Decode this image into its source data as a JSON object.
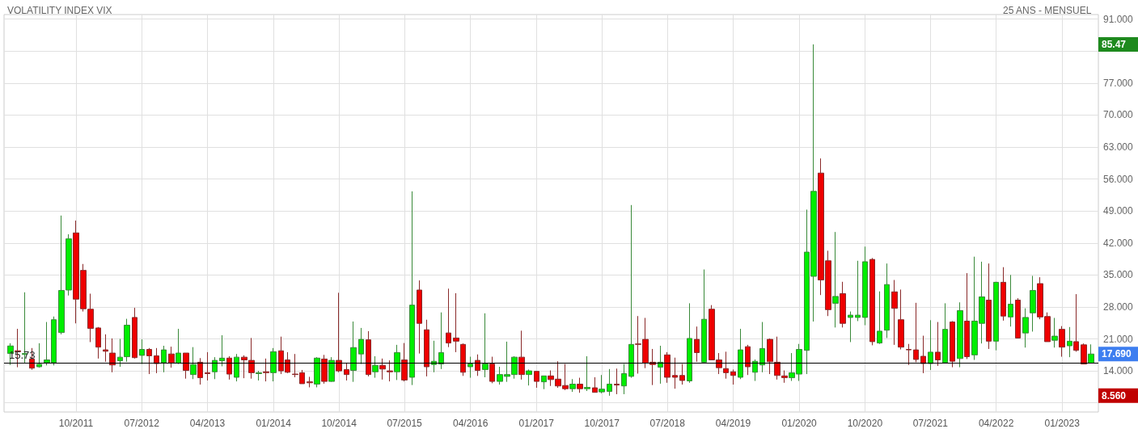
{
  "chart_data": {
    "type": "candlestick",
    "title": "VOLATILITY INDEX VIX",
    "subtitle": "25 ANS - MENSUEL",
    "x": [
      "2011-01",
      "2011-02",
      "2011-03",
      "2011-04",
      "2011-05",
      "2011-06",
      "2011-07",
      "2011-08",
      "2011-09",
      "2011-10",
      "2011-11",
      "2011-12",
      "2012-01",
      "2012-02",
      "2012-03",
      "2012-04",
      "2012-05",
      "2012-06",
      "2012-07",
      "2012-08",
      "2012-09",
      "2012-10",
      "2012-11",
      "2012-12",
      "2013-01",
      "2013-02",
      "2013-03",
      "2013-04",
      "2013-05",
      "2013-06",
      "2013-07",
      "2013-08",
      "2013-09",
      "2013-10",
      "2013-11",
      "2013-12",
      "2014-01",
      "2014-02",
      "2014-03",
      "2014-04",
      "2014-05",
      "2014-06",
      "2014-07",
      "2014-08",
      "2014-09",
      "2014-10",
      "2014-11",
      "2014-12",
      "2015-01",
      "2015-02",
      "2015-03",
      "2015-04",
      "2015-05",
      "2015-06",
      "2015-07",
      "2015-08",
      "2015-09",
      "2015-10",
      "2015-11",
      "2015-12",
      "2016-01",
      "2016-02",
      "2016-03",
      "2016-04",
      "2016-05",
      "2016-06",
      "2016-07",
      "2016-08",
      "2016-09",
      "2016-10",
      "2016-11",
      "2016-12",
      "2017-01",
      "2017-02",
      "2017-03",
      "2017-04",
      "2017-05",
      "2017-06",
      "2017-07",
      "2017-08",
      "2017-09",
      "2017-10",
      "2017-11",
      "2017-12",
      "2018-01",
      "2018-02",
      "2018-03",
      "2018-04",
      "2018-05",
      "2018-06",
      "2018-07",
      "2018-08",
      "2018-09",
      "2018-10",
      "2018-11",
      "2018-12",
      "2019-01",
      "2019-02",
      "2019-03",
      "2019-04",
      "2019-05",
      "2019-06",
      "2019-07",
      "2019-08",
      "2019-09",
      "2019-10",
      "2019-11",
      "2019-12",
      "2020-01",
      "2020-02",
      "2020-03",
      "2020-04",
      "2020-05",
      "2020-06",
      "2020-07",
      "2020-08",
      "2020-09",
      "2020-10",
      "2020-11",
      "2020-12",
      "2021-01",
      "2021-02",
      "2021-03",
      "2021-04",
      "2021-05",
      "2021-06",
      "2021-07",
      "2021-08",
      "2021-09",
      "2021-10",
      "2021-11",
      "2021-12",
      "2022-01",
      "2022-02",
      "2022-03",
      "2022-04",
      "2022-05",
      "2022-06",
      "2022-07",
      "2022-08",
      "2022-09",
      "2022-10",
      "2022-11",
      "2022-12",
      "2023-01",
      "2023-02",
      "2023-03",
      "2023-04",
      "2023-05"
    ],
    "ohlc": [
      [
        17.8,
        20.05,
        15.3,
        19.46
      ],
      [
        18.4,
        23.2,
        14.8,
        18.2
      ],
      [
        17.6,
        31.2,
        15.8,
        17.8
      ],
      [
        16.6,
        19.0,
        14.25,
        14.6
      ],
      [
        14.9,
        20.05,
        14.7,
        15.45
      ],
      [
        15.8,
        24.7,
        15.2,
        16.4
      ],
      [
        15.8,
        25.9,
        15.2,
        25.2
      ],
      [
        22.4,
        48.0,
        22.0,
        31.6
      ],
      [
        31.7,
        43.9,
        30.5,
        42.9
      ],
      [
        44.2,
        46.9,
        24.4,
        29.7
      ],
      [
        36.0,
        37.4,
        27.0,
        27.6
      ],
      [
        27.5,
        30.9,
        20.3,
        23.3
      ],
      [
        23.4,
        23.6,
        16.7,
        19.2
      ],
      [
        18.6,
        22.0,
        16.0,
        18.3
      ],
      [
        17.9,
        21.1,
        13.7,
        15.3
      ],
      [
        16.2,
        21.0,
        14.9,
        17.0
      ],
      [
        17.1,
        25.4,
        16.0,
        24.0
      ],
      [
        25.7,
        27.8,
        16.7,
        16.9
      ],
      [
        17.4,
        20.9,
        15.5,
        18.7
      ],
      [
        18.7,
        19.0,
        13.3,
        17.3
      ],
      [
        17.3,
        19.0,
        13.5,
        15.6
      ],
      [
        15.8,
        19.5,
        13.7,
        18.6
      ],
      [
        17.7,
        19.3,
        14.7,
        15.7
      ],
      [
        15.7,
        23.2,
        15.5,
        17.9
      ],
      [
        17.9,
        17.9,
        12.3,
        14.1
      ],
      [
        13.2,
        19.2,
        12.2,
        15.4
      ],
      [
        15.9,
        16.8,
        11.0,
        12.5
      ],
      [
        13.6,
        18.1,
        11.9,
        13.4
      ],
      [
        13.8,
        17.0,
        12.2,
        16.3
      ],
      [
        16.2,
        21.8,
        15.0,
        16.8
      ],
      [
        16.8,
        17.2,
        12.1,
        13.3
      ],
      [
        12.6,
        17.7,
        11.7,
        17.0
      ],
      [
        17.0,
        17.4,
        12.4,
        16.4
      ],
      [
        16.3,
        21.2,
        12.3,
        13.6
      ],
      [
        13.4,
        14.0,
        11.9,
        13.6
      ],
      [
        13.8,
        16.7,
        11.7,
        13.6
      ],
      [
        13.6,
        19.0,
        11.7,
        18.2
      ],
      [
        18.4,
        21.5,
        13.3,
        14.0
      ],
      [
        16.4,
        18.1,
        13.5,
        13.7
      ],
      [
        13.3,
        17.7,
        12.6,
        13.2
      ],
      [
        13.6,
        14.2,
        11.2,
        11.2
      ],
      [
        11.6,
        12.7,
        10.4,
        11.4
      ],
      [
        11.1,
        17.0,
        10.4,
        16.8
      ],
      [
        16.6,
        17.5,
        11.2,
        11.7
      ],
      [
        11.7,
        17.0,
        11.6,
        16.3
      ],
      [
        16.3,
        31.1,
        13.7,
        14.0
      ],
      [
        14.3,
        15.8,
        11.9,
        13.2
      ],
      [
        14.1,
        24.8,
        11.6,
        19.1
      ],
      [
        17.7,
        23.4,
        15.5,
        20.9
      ],
      [
        20.8,
        22.7,
        12.8,
        13.2
      ],
      [
        13.8,
        17.2,
        12.5,
        15.2
      ],
      [
        15.2,
        16.7,
        12.1,
        14.4
      ],
      [
        14.0,
        16.3,
        11.7,
        13.8
      ],
      [
        13.8,
        19.7,
        12.0,
        18.0
      ],
      [
        16.4,
        20.1,
        11.7,
        12.0
      ],
      [
        12.6,
        53.3,
        10.9,
        28.4
      ],
      [
        31.7,
        33.8,
        17.8,
        24.4
      ],
      [
        23.0,
        25.2,
        12.8,
        14.9
      ],
      [
        15.4,
        20.6,
        13.7,
        16.1
      ],
      [
        15.5,
        26.8,
        14.4,
        18.0
      ],
      [
        22.3,
        32.0,
        19.2,
        20.1
      ],
      [
        21.2,
        31.0,
        18.1,
        20.5
      ],
      [
        19.8,
        20.0,
        12.9,
        13.7
      ],
      [
        14.9,
        17.1,
        12.5,
        15.5
      ],
      [
        16.3,
        17.6,
        12.9,
        14.1
      ],
      [
        14.3,
        26.6,
        12.6,
        15.5
      ],
      [
        15.5,
        17.1,
        11.3,
        11.7
      ],
      [
        11.7,
        14.9,
        11.0,
        13.2
      ],
      [
        12.8,
        20.4,
        11.6,
        13.2
      ],
      [
        13.2,
        17.2,
        12.3,
        17.0
      ],
      [
        17.0,
        22.8,
        12.1,
        13.2
      ],
      [
        13.2,
        14.3,
        10.8,
        14.0
      ],
      [
        13.9,
        13.9,
        10.3,
        11.7
      ],
      [
        11.6,
        12.9,
        10.0,
        12.9
      ],
      [
        12.9,
        14.1,
        10.7,
        12.1
      ],
      [
        12.2,
        16.1,
        10.3,
        10.7
      ],
      [
        10.8,
        15.5,
        9.8,
        10.1
      ],
      [
        10.1,
        12.2,
        9.4,
        11.1
      ],
      [
        11.1,
        12.5,
        9.2,
        10.1
      ],
      [
        10.1,
        17.2,
        9.6,
        10.4
      ],
      [
        10.3,
        12.6,
        9.3,
        9.3
      ],
      [
        9.4,
        13.1,
        9.1,
        10.0
      ],
      [
        9.5,
        14.4,
        8.56,
        11.1
      ],
      [
        11.1,
        14.5,
        8.9,
        10.9
      ],
      [
        10.7,
        15.5,
        8.9,
        13.4
      ],
      [
        12.8,
        50.3,
        12.5,
        19.8
      ],
      [
        19.9,
        26.0,
        13.4,
        19.8
      ],
      [
        20.9,
        25.6,
        14.6,
        15.7
      ],
      [
        15.9,
        18.8,
        10.9,
        15.4
      ],
      [
        14.8,
        19.5,
        11.2,
        15.9
      ],
      [
        17.5,
        18.1,
        11.4,
        12.6
      ],
      [
        13.0,
        16.9,
        10.1,
        12.6
      ],
      [
        13.0,
        15.5,
        11.0,
        11.9
      ],
      [
        11.8,
        28.8,
        11.4,
        21.1
      ],
      [
        20.9,
        23.7,
        16.0,
        18.0
      ],
      [
        15.9,
        36.2,
        15.7,
        25.3
      ],
      [
        27.5,
        28.4,
        16.4,
        16.4
      ],
      [
        16.4,
        17.9,
        13.3,
        14.7
      ],
      [
        14.5,
        18.2,
        12.3,
        13.6
      ],
      [
        13.8,
        14.3,
        11.0,
        13.0
      ],
      [
        12.6,
        23.2,
        12.2,
        18.6
      ],
      [
        19.3,
        19.7,
        13.1,
        14.9
      ],
      [
        13.7,
        16.5,
        11.8,
        16.1
      ],
      [
        15.3,
        24.7,
        13.7,
        18.9
      ],
      [
        20.9,
        21.1,
        13.3,
        16.0
      ],
      [
        15.9,
        21.5,
        12.1,
        13.0
      ],
      [
        12.9,
        14.1,
        11.4,
        12.5
      ],
      [
        12.5,
        17.9,
        11.8,
        13.6
      ],
      [
        13.3,
        19.9,
        11.8,
        18.7
      ],
      [
        18.5,
        49.3,
        13.3,
        40.0
      ],
      [
        34.7,
        85.47,
        24.8,
        53.3
      ],
      [
        57.3,
        60.5,
        30.6,
        33.9
      ],
      [
        38.1,
        40.3,
        26.0,
        27.4
      ],
      [
        28.8,
        44.4,
        23.5,
        30.3
      ],
      [
        30.9,
        33.5,
        23.5,
        24.4
      ],
      [
        25.7,
        27.0,
        20.3,
        26.2
      ],
      [
        25.7,
        38.1,
        24.9,
        26.2
      ],
      [
        25.7,
        41.2,
        24.0,
        37.9
      ],
      [
        38.4,
        38.7,
        19.6,
        20.4
      ],
      [
        20.1,
        31.4,
        19.9,
        22.7
      ],
      [
        22.9,
        37.5,
        21.2,
        32.9
      ],
      [
        31.3,
        33.9,
        19.7,
        27.7
      ],
      [
        25.2,
        31.8,
        18.7,
        19.2
      ],
      [
        18.7,
        19.9,
        15.3,
        18.6
      ],
      [
        18.6,
        28.9,
        15.9,
        16.5
      ],
      [
        17.2,
        21.7,
        13.5,
        15.6
      ],
      [
        15.6,
        25.1,
        14.2,
        18.1
      ],
      [
        18.1,
        24.7,
        15.1,
        16.4
      ],
      [
        15.8,
        28.8,
        15.7,
        23.1
      ],
      [
        24.7,
        24.9,
        14.8,
        16.1
      ],
      [
        16.7,
        29.0,
        14.8,
        27.2
      ],
      [
        24.9,
        35.4,
        16.6,
        17.1
      ],
      [
        17.5,
        39.0,
        16.4,
        24.9
      ],
      [
        24.4,
        37.9,
        20.0,
        30.2
      ],
      [
        29.5,
        37.5,
        18.8,
        20.5
      ],
      [
        20.5,
        33.5,
        18.5,
        33.4
      ],
      [
        33.4,
        36.7,
        25.0,
        26.0
      ],
      [
        25.8,
        35.0,
        23.7,
        28.6
      ],
      [
        29.5,
        29.9,
        21.1,
        21.2
      ],
      [
        22.3,
        27.7,
        19.1,
        25.7
      ],
      [
        26.7,
        34.8,
        22.6,
        31.6
      ],
      [
        33.1,
        34.5,
        25.3,
        25.8
      ],
      [
        25.9,
        26.8,
        20.4,
        20.4
      ],
      [
        20.7,
        25.6,
        19.1,
        21.6
      ],
      [
        23.1,
        23.8,
        17.1,
        19.2
      ],
      [
        19.5,
        23.6,
        17.0,
        20.5
      ],
      [
        20.4,
        30.8,
        18.2,
        18.5
      ],
      [
        19.7,
        20.0,
        15.5,
        15.5
      ],
      [
        15.7,
        19.8,
        15.7,
        17.69
      ]
    ],
    "xlim": [
      "2010-12-05",
      "2023-06-01"
    ],
    "xticks": [
      {
        "value": "2011-10",
        "label": "10/2011"
      },
      {
        "value": "2012-07",
        "label": "07/2012"
      },
      {
        "value": "2013-04",
        "label": "04/2013"
      },
      {
        "value": "2014-01",
        "label": "01/2014"
      },
      {
        "value": "2014-10",
        "label": "10/2014"
      },
      {
        "value": "2015-07",
        "label": "07/2015"
      },
      {
        "value": "2016-04",
        "label": "04/2016"
      },
      {
        "value": "2017-01",
        "label": "01/2017"
      },
      {
        "value": "2017-10",
        "label": "10/2017"
      },
      {
        "value": "2018-07",
        "label": "07/2018"
      },
      {
        "value": "2019-04",
        "label": "04/2019"
      },
      {
        "value": "2020-01",
        "label": "01/2020"
      },
      {
        "value": "2020-10",
        "label": "10/2020"
      },
      {
        "value": "2021-07",
        "label": "07/2021"
      },
      {
        "value": "2022-04",
        "label": "04/2022"
      },
      {
        "value": "2023-01",
        "label": "01/2023"
      }
    ],
    "ylim": [
      5,
      92
    ],
    "yticks": [
      {
        "value": 7,
        "label": null
      },
      {
        "value": 14,
        "label": "14.000"
      },
      {
        "value": 21,
        "label": "21.000"
      },
      {
        "value": 28,
        "label": "28.000"
      },
      {
        "value": 35,
        "label": "35.000"
      },
      {
        "value": 42,
        "label": "42.000"
      },
      {
        "value": 49,
        "label": "49.000"
      },
      {
        "value": 56,
        "label": "56.000"
      },
      {
        "value": 63,
        "label": "63.000"
      },
      {
        "value": 70,
        "label": "70.000"
      },
      {
        "value": 77,
        "label": "77.000"
      },
      {
        "value": 84,
        "label": null
      },
      {
        "value": 91,
        "label": "91.000"
      }
    ],
    "ref_lines": [
      {
        "axis": "y",
        "value": 15.73,
        "label": "15.73",
        "color": "#000000"
      }
    ],
    "annotations": [
      "85.47",
      "17.690",
      "8.560"
    ],
    "grid": true
  }
}
